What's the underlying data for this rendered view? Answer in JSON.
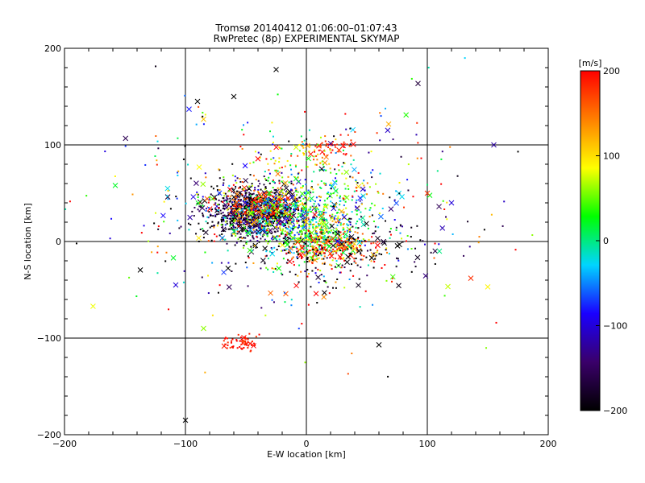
{
  "chart_data": {
    "type": "scatter",
    "title": "Tromsø 20140412 01:06:00–01:07:43",
    "subtitle": "RwPretec (8p) EXPERIMENTAL SKYMAP",
    "xlabel": "E-W location [km]",
    "ylabel": "N-S location [km]",
    "xlim": [
      -200,
      200
    ],
    "ylim": [
      -200,
      200
    ],
    "xticks": [
      -200,
      -100,
      0,
      100,
      200
    ],
    "yticks": [
      -200,
      -100,
      0,
      100,
      200
    ],
    "xtick_labels": [
      "−200",
      "−100",
      "0",
      "100",
      "200"
    ],
    "ytick_labels": [
      "−200",
      "−100",
      "0",
      "100",
      "200"
    ],
    "grid": true,
    "grid_lines_x": [
      -100,
      0,
      100
    ],
    "grid_lines_y": [
      -100,
      0,
      100
    ],
    "colorbar": {
      "label": "[m/s]",
      "range": [
        -200,
        200
      ],
      "ticks": [
        -200,
        -100,
        0,
        100,
        200
      ],
      "tick_labels": [
        "−200",
        "−100",
        "0",
        "100",
        "200"
      ],
      "colormap": [
        "#000000",
        "#3a006a",
        "#1a00ff",
        "#00d5ff",
        "#00ff00",
        "#ffff00",
        "#ff8000",
        "#ff0000"
      ]
    },
    "markers": [
      "dot (small detections)",
      "x (large detections)"
    ],
    "clusters": [
      {
        "x": -45,
        "y": 30,
        "sx": 20,
        "sy": 14,
        "n": 900,
        "v": -180,
        "vs": 40
      },
      {
        "x": -35,
        "y": 38,
        "sx": 18,
        "sy": 12,
        "n": 200,
        "v": 180,
        "vs": 30
      },
      {
        "x": -30,
        "y": 28,
        "sx": 22,
        "sy": 14,
        "n": 200,
        "v": 60,
        "vs": 60
      },
      {
        "x": -5,
        "y": 20,
        "sx": 25,
        "sy": 20,
        "n": 250,
        "v": -20,
        "vs": 60
      },
      {
        "x": 10,
        "y": 5,
        "sx": 15,
        "sy": 10,
        "n": 250,
        "v": 40,
        "vs": 50
      },
      {
        "x": 20,
        "y": -8,
        "sx": 20,
        "sy": 10,
        "n": 200,
        "v": 160,
        "vs": 50
      },
      {
        "x": 25,
        "y": 40,
        "sx": 20,
        "sy": 20,
        "n": 150,
        "v": 30,
        "vs": 60
      },
      {
        "x": 20,
        "y": 100,
        "sx": 10,
        "sy": 6,
        "n": 40,
        "v": 190,
        "vs": 15
      },
      {
        "x": 0,
        "y": 85,
        "sx": 20,
        "sy": 10,
        "n": 60,
        "v": 110,
        "vs": 60
      },
      {
        "x": -53,
        "y": -105,
        "sx": 7,
        "sy": 4,
        "n": 60,
        "v": 190,
        "vs": 10
      },
      {
        "x": 30,
        "y": -10,
        "sx": 35,
        "sy": 18,
        "n": 150,
        "v": -190,
        "vs": 20
      },
      {
        "x": -10,
        "y": 30,
        "sx": 70,
        "sy": 55,
        "n": 500,
        "v": 0,
        "vs": 140
      }
    ],
    "notable_points": [
      {
        "x": -100,
        "y": -185,
        "v": -200,
        "m": "x"
      },
      {
        "x": -25,
        "y": 178,
        "v": -200,
        "m": "x"
      },
      {
        "x": 155,
        "y": 100,
        "v": -120,
        "m": "x"
      },
      {
        "x": 150,
        "y": -47,
        "v": 90,
        "m": "x"
      },
      {
        "x": 175,
        "y": 93,
        "v": -200,
        "m": "dot"
      },
      {
        "x": -158,
        "y": 58,
        "v": 20,
        "m": "x"
      },
      {
        "x": -190,
        "y": -2,
        "v": -200,
        "m": "dot"
      },
      {
        "x": -108,
        "y": -45,
        "v": -100,
        "m": "x"
      },
      {
        "x": -97,
        "y": 137,
        "v": -80,
        "m": "x"
      },
      {
        "x": -90,
        "y": 145,
        "v": -200,
        "m": "x"
      },
      {
        "x": -60,
        "y": 150,
        "v": -200,
        "m": "x"
      },
      {
        "x": -85,
        "y": -90,
        "v": 60,
        "m": "x"
      },
      {
        "x": 60,
        "y": -107,
        "v": -200,
        "m": "x"
      },
      {
        "x": 136,
        "y": -38,
        "v": 180,
        "m": "x"
      },
      {
        "x": 120,
        "y": 40,
        "v": -100,
        "m": "x"
      },
      {
        "x": 110,
        "y": -10,
        "v": 0,
        "m": "x"
      },
      {
        "x": 100,
        "y": 50,
        "v": 180,
        "m": "x"
      },
      {
        "x": -110,
        "y": -17,
        "v": 20,
        "m": "x"
      }
    ]
  }
}
